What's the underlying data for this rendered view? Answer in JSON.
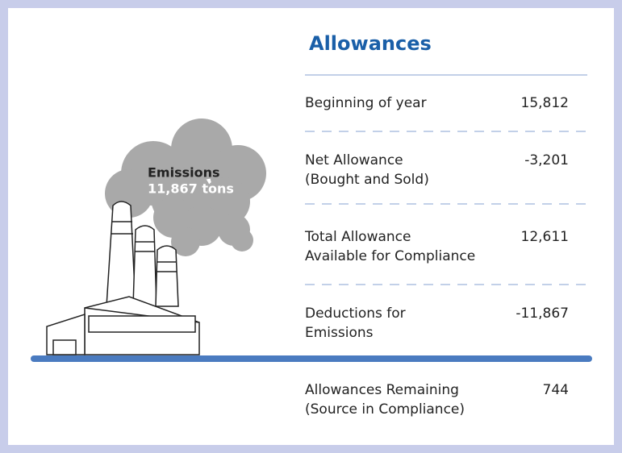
{
  "title": "Allowances",
  "emissions": {
    "label": "Emissions",
    "amount": "11,867 tons"
  },
  "rows": [
    {
      "label": [
        "Beginning of year"
      ],
      "value": "15,812"
    },
    {
      "label": [
        "Net Allowance",
        "(Bought and Sold)"
      ],
      "value": "-3,201"
    },
    {
      "label": [
        "Total Allowance",
        "Available for Compliance"
      ],
      "value": "12,611"
    },
    {
      "label": [
        "Deductions for",
        "Emissions"
      ],
      "value": "-11,867"
    },
    {
      "label": [
        "Allowances Remaining",
        "(Source in Compliance)"
      ],
      "value": "744"
    }
  ]
}
